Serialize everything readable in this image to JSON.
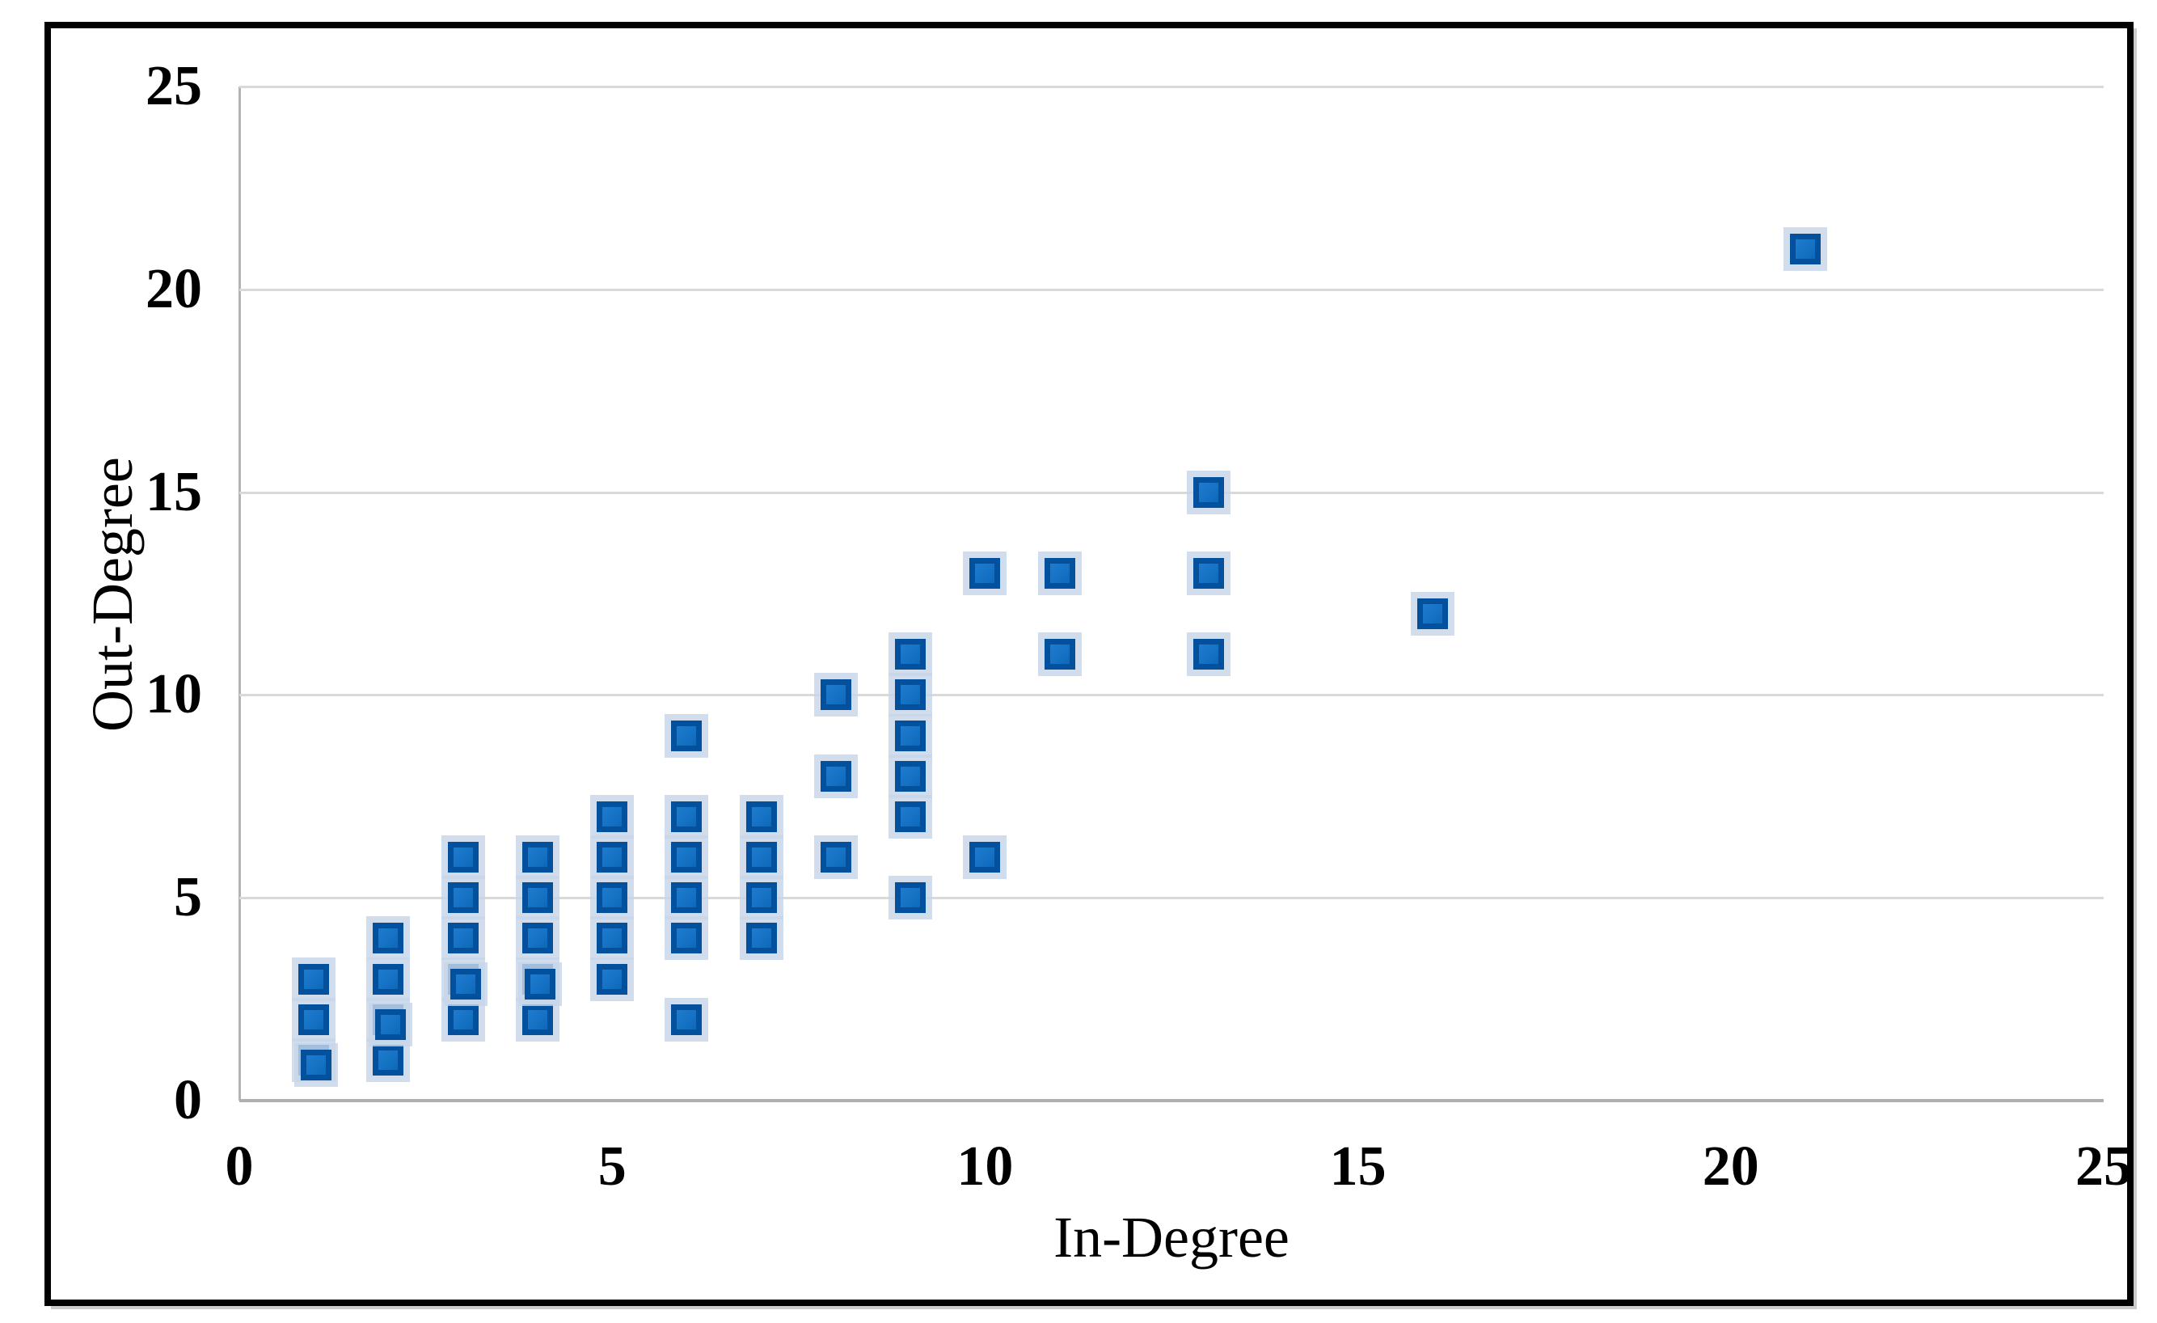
{
  "figure": {
    "background": "#ffffff",
    "border_color": "#000000"
  },
  "chart_data": {
    "type": "scatter",
    "title": "",
    "xlabel": "In-Degree",
    "ylabel": "Out-Degree",
    "xlim": [
      0,
      25
    ],
    "ylim": [
      0,
      25
    ],
    "x_ticks": [
      0,
      5,
      10,
      15,
      20,
      25
    ],
    "y_ticks": [
      0,
      5,
      10,
      15,
      20,
      25
    ],
    "grid": "horizontal-only",
    "legend": "none",
    "marker": {
      "shape": "square",
      "fill": "#1572C4",
      "border": "#03519D",
      "halo": "#C7D5E9"
    },
    "points": [
      [
        1,
        1
      ],
      [
        1,
        1
      ],
      [
        1,
        2
      ],
      [
        1,
        3
      ],
      [
        2,
        1
      ],
      [
        2,
        2
      ],
      [
        2,
        2
      ],
      [
        2,
        3
      ],
      [
        2,
        4
      ],
      [
        3,
        2
      ],
      [
        3,
        3
      ],
      [
        3,
        3
      ],
      [
        3,
        4
      ],
      [
        3,
        5
      ],
      [
        3,
        6
      ],
      [
        4,
        2
      ],
      [
        4,
        3
      ],
      [
        4,
        3
      ],
      [
        4,
        4
      ],
      [
        4,
        5
      ],
      [
        4,
        6
      ],
      [
        5,
        3
      ],
      [
        5,
        4
      ],
      [
        5,
        5
      ],
      [
        5,
        6
      ],
      [
        5,
        7
      ],
      [
        6,
        2
      ],
      [
        6,
        4
      ],
      [
        6,
        5
      ],
      [
        6,
        6
      ],
      [
        6,
        7
      ],
      [
        6,
        9
      ],
      [
        7,
        4
      ],
      [
        7,
        5
      ],
      [
        7,
        6
      ],
      [
        7,
        7
      ],
      [
        8,
        6
      ],
      [
        8,
        8
      ],
      [
        8,
        10
      ],
      [
        9,
        5
      ],
      [
        9,
        7
      ],
      [
        9,
        8
      ],
      [
        9,
        9
      ],
      [
        9,
        10
      ],
      [
        9,
        11
      ],
      [
        10,
        6
      ],
      [
        10,
        13
      ],
      [
        11,
        11
      ],
      [
        11,
        13
      ],
      [
        13,
        11
      ],
      [
        13,
        13
      ],
      [
        13,
        15
      ],
      [
        16,
        12
      ],
      [
        21,
        21
      ]
    ]
  }
}
